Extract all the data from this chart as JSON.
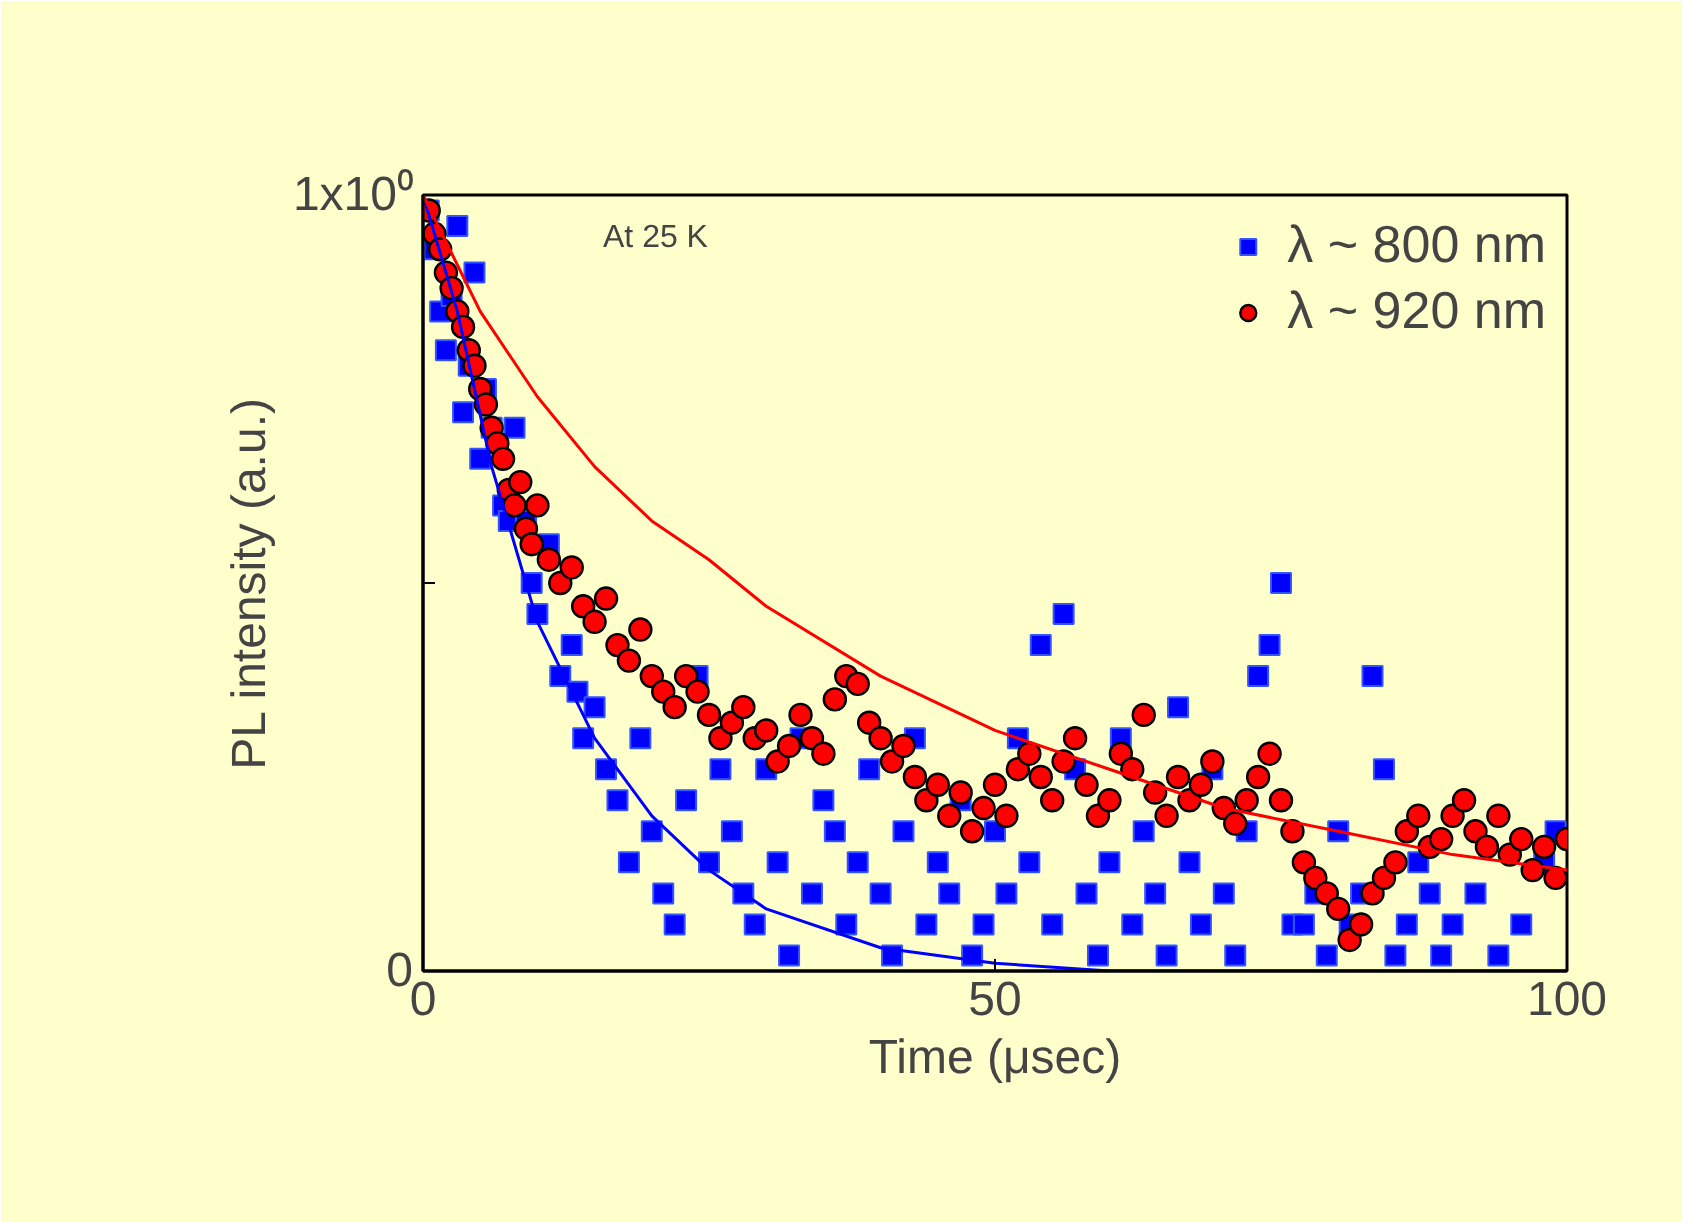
{
  "chart_data": {
    "type": "scatter",
    "xlabel": "Time (μsec)",
    "ylabel": "PL intensity (a.u.)",
    "annotations": [
      "At 25 K"
    ],
    "xlim": [
      0,
      100
    ],
    "xticks": [
      0,
      50,
      100
    ],
    "ylim": [
      0,
      1
    ],
    "yticks": [
      0,
      {
        "value": 0.5,
        "label": null
      },
      {
        "value": 1,
        "label": "1x10⁰"
      }
    ],
    "grid": false,
    "legend": "top right",
    "series": [
      {
        "name": "λ ~ 800 nm",
        "color": "#0000ff",
        "marker": "square",
        "x": [
          0.5,
          1,
          1.5,
          2,
          2.5,
          3,
          3.5,
          4,
          4.5,
          5,
          5.5,
          6,
          7,
          7.5,
          8,
          9,
          9.5,
          10,
          11,
          12,
          13,
          13.5,
          14,
          15,
          16,
          17,
          18,
          19,
          20,
          21,
          22,
          23,
          24,
          25,
          26,
          27,
          28,
          29,
          30,
          31,
          32,
          33,
          34,
          35,
          36,
          37,
          38,
          39,
          40,
          41,
          42,
          43,
          44,
          45,
          46,
          47,
          48,
          49,
          50,
          51,
          52,
          53,
          54,
          55,
          56,
          57,
          58,
          59,
          60,
          61,
          62,
          63,
          64,
          65,
          66,
          67,
          68,
          69,
          70,
          71,
          72,
          73,
          74,
          75,
          76,
          77,
          78,
          79,
          80,
          81,
          82,
          83,
          84,
          85,
          86,
          87,
          88,
          89,
          90,
          92,
          94,
          96,
          98,
          99
        ],
        "values": [
          0.98,
          0.93,
          0.85,
          0.8,
          0.87,
          0.96,
          0.72,
          0.78,
          0.9,
          0.66,
          0.75,
          0.7,
          0.6,
          0.58,
          0.7,
          0.58,
          0.5,
          0.46,
          0.55,
          0.38,
          0.42,
          0.36,
          0.3,
          0.34,
          0.26,
          0.22,
          0.14,
          0.3,
          0.18,
          0.1,
          0.06,
          0.22,
          0.38,
          0.14,
          0.26,
          0.18,
          0.1,
          0.06,
          0.26,
          0.14,
          0.02,
          0.3,
          0.1,
          0.22,
          0.18,
          0.06,
          0.14,
          0.26,
          0.1,
          0.02,
          0.18,
          0.3,
          0.06,
          0.14,
          0.1,
          0.22,
          0.02,
          0.06,
          0.18,
          0.1,
          0.3,
          0.14,
          0.42,
          0.06,
          0.46,
          0.26,
          0.1,
          0.02,
          0.14,
          0.3,
          0.06,
          0.18,
          0.1,
          0.02,
          0.34,
          0.14,
          0.06,
          0.26,
          0.1,
          0.02,
          0.18,
          0.38,
          0.42,
          0.5,
          0.06,
          0.06,
          0.1,
          0.02,
          0.18,
          0.06,
          0.1,
          0.38,
          0.26,
          0.02,
          0.06,
          0.14,
          0.1,
          0.02,
          0.06,
          0.1,
          0.02,
          0.06,
          0.14,
          0.18
        ]
      },
      {
        "name": "λ ~ 920 nm",
        "color": "#ff0000",
        "marker": "circle",
        "x": [
          0.5,
          1,
          1.5,
          2,
          2.5,
          3,
          3.5,
          4,
          4.5,
          5,
          5.5,
          6,
          6.5,
          7,
          7.5,
          8,
          8.5,
          9,
          9.5,
          10,
          11,
          12,
          13,
          14,
          15,
          16,
          17,
          18,
          19,
          20,
          21,
          22,
          23,
          24,
          25,
          26,
          27,
          28,
          29,
          30,
          31,
          32,
          33,
          34,
          35,
          36,
          37,
          38,
          39,
          40,
          41,
          42,
          43,
          44,
          45,
          46,
          47,
          48,
          49,
          50,
          51,
          52,
          53,
          54,
          55,
          56,
          57,
          58,
          59,
          60,
          61,
          62,
          63,
          64,
          65,
          66,
          67,
          68,
          69,
          70,
          71,
          72,
          73,
          74,
          75,
          76,
          77,
          78,
          79,
          80,
          81,
          82,
          83,
          84,
          85,
          86,
          87,
          88,
          89,
          90,
          91,
          92,
          93,
          94,
          95,
          96,
          97,
          98,
          99,
          100
        ],
        "values": [
          0.98,
          0.95,
          0.93,
          0.9,
          0.88,
          0.85,
          0.83,
          0.8,
          0.78,
          0.75,
          0.73,
          0.7,
          0.68,
          0.66,
          0.62,
          0.6,
          0.63,
          0.57,
          0.55,
          0.6,
          0.53,
          0.5,
          0.52,
          0.47,
          0.45,
          0.48,
          0.42,
          0.4,
          0.44,
          0.38,
          0.36,
          0.34,
          0.38,
          0.36,
          0.33,
          0.3,
          0.32,
          0.34,
          0.3,
          0.31,
          0.27,
          0.29,
          0.33,
          0.3,
          0.28,
          0.35,
          0.38,
          0.37,
          0.32,
          0.3,
          0.27,
          0.29,
          0.25,
          0.22,
          0.24,
          0.2,
          0.23,
          0.18,
          0.21,
          0.24,
          0.2,
          0.26,
          0.28,
          0.25,
          0.22,
          0.27,
          0.3,
          0.24,
          0.2,
          0.22,
          0.28,
          0.26,
          0.33,
          0.23,
          0.2,
          0.25,
          0.22,
          0.24,
          0.27,
          0.21,
          0.19,
          0.22,
          0.25,
          0.28,
          0.22,
          0.18,
          0.14,
          0.12,
          0.1,
          0.08,
          0.04,
          0.06,
          0.1,
          0.12,
          0.14,
          0.18,
          0.2,
          0.16,
          0.17,
          0.2,
          0.22,
          0.18,
          0.16,
          0.2,
          0.15,
          0.17,
          0.13,
          0.16,
          0.12,
          0.17
        ]
      },
      {
        "type": "line",
        "color": "#0000ff",
        "x": [
          0,
          3,
          6,
          10,
          15,
          20,
          25,
          30,
          40,
          50,
          60,
          70,
          100
        ],
        "values": [
          1,
          0.85,
          0.65,
          0.45,
          0.3,
          0.2,
          0.13,
          0.08,
          0.03,
          0.01,
          0,
          0,
          0
        ]
      },
      {
        "type": "line",
        "color": "#ff0000",
        "x": [
          0,
          5,
          10,
          15,
          20,
          25,
          30,
          40,
          50,
          60,
          70,
          80,
          90,
          100
        ],
        "values": [
          1,
          0.85,
          0.74,
          0.65,
          0.58,
          0.53,
          0.47,
          0.38,
          0.31,
          0.26,
          0.21,
          0.18,
          0.15,
          0.13
        ]
      }
    ]
  }
}
